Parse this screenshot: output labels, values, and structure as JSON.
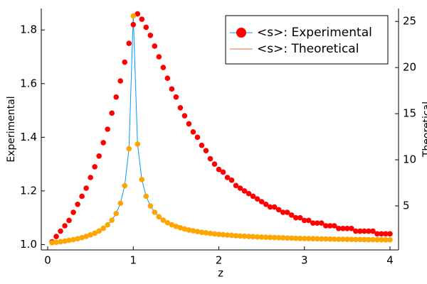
{
  "chart_data": {
    "type": "scatter",
    "x_label": "z",
    "y_label": "Experimental",
    "y2_label": "Theoretical",
    "x": [
      0.05,
      0.1,
      0.15,
      0.2,
      0.25,
      0.3,
      0.35,
      0.4,
      0.45,
      0.5,
      0.55,
      0.6,
      0.65,
      0.7,
      0.75,
      0.8,
      0.85,
      0.9,
      0.95,
      1.0,
      1.05,
      1.1,
      1.15,
      1.2,
      1.25,
      1.3,
      1.35,
      1.4,
      1.45,
      1.5,
      1.55,
      1.6,
      1.65,
      1.7,
      1.75,
      1.8,
      1.85,
      1.9,
      1.95,
      2.0,
      2.05,
      2.1,
      2.15,
      2.2,
      2.25,
      2.3,
      2.35,
      2.4,
      2.45,
      2.5,
      2.55,
      2.6,
      2.65,
      2.7,
      2.75,
      2.8,
      2.85,
      2.9,
      2.95,
      3.0,
      3.05,
      3.1,
      3.15,
      3.2,
      3.25,
      3.3,
      3.35,
      3.4,
      3.45,
      3.5,
      3.55,
      3.6,
      3.65,
      3.7,
      3.75,
      3.8,
      3.85,
      3.9,
      3.95,
      4.0
    ],
    "series": [
      {
        "name": "<s>: Experimental",
        "color": "#ff0000",
        "legend_line_color": "#009af9",
        "values": [
          1.01,
          1.03,
          1.05,
          1.07,
          1.09,
          1.12,
          1.15,
          1.18,
          1.21,
          1.25,
          1.29,
          1.33,
          1.38,
          1.43,
          1.49,
          1.55,
          1.61,
          1.68,
          1.75,
          1.82,
          1.86,
          1.84,
          1.81,
          1.78,
          1.74,
          1.7,
          1.66,
          1.62,
          1.58,
          1.55,
          1.51,
          1.48,
          1.45,
          1.42,
          1.4,
          1.37,
          1.35,
          1.32,
          1.3,
          1.28,
          1.27,
          1.25,
          1.24,
          1.22,
          1.21,
          1.2,
          1.19,
          1.18,
          1.17,
          1.16,
          1.15,
          1.14,
          1.14,
          1.13,
          1.12,
          1.12,
          1.11,
          1.1,
          1.1,
          1.09,
          1.09,
          1.08,
          1.08,
          1.08,
          1.07,
          1.07,
          1.07,
          1.06,
          1.06,
          1.06,
          1.06,
          1.05,
          1.05,
          1.05,
          1.05,
          1.05,
          1.04,
          1.04,
          1.04,
          1.04
        ]
      },
      {
        "name": "<s>: Theoretical",
        "color": "#ffa500",
        "line_color": "#009af9",
        "legend_line_color": "#e26f46",
        "axis": "y2",
        "values": [
          1.01,
          1.06,
          1.12,
          1.19,
          1.27,
          1.35,
          1.45,
          1.56,
          1.7,
          1.86,
          2.04,
          2.28,
          2.57,
          2.95,
          3.46,
          4.18,
          5.29,
          7.19,
          11.2,
          25.6,
          11.7,
          7.86,
          6.05,
          5.0,
          4.31,
          3.82,
          3.46,
          3.18,
          2.96,
          2.78,
          2.63,
          2.5,
          2.39,
          2.3,
          2.22,
          2.14,
          2.08,
          2.02,
          1.97,
          1.92,
          1.88,
          1.84,
          1.81,
          1.77,
          1.74,
          1.72,
          1.69,
          1.67,
          1.64,
          1.62,
          1.6,
          1.59,
          1.57,
          1.55,
          1.54,
          1.52,
          1.51,
          1.49,
          1.48,
          1.47,
          1.46,
          1.45,
          1.44,
          1.43,
          1.42,
          1.41,
          1.4,
          1.39,
          1.39,
          1.38,
          1.37,
          1.36,
          1.36,
          1.35,
          1.34,
          1.34,
          1.33,
          1.33,
          1.32,
          1.32
        ]
      }
    ],
    "xlim": [
      -0.075,
      4.1
    ],
    "xticks": [
      0,
      1,
      2,
      3,
      4
    ],
    "ylim": [
      0.98,
      1.88
    ],
    "yticks": [
      {
        "value": 1,
        "label": "1.0"
      },
      1.2,
      1.4,
      1.6,
      1.8
    ],
    "y2lim": [
      0.23,
      26.4
    ],
    "y2ticks": [
      5,
      10,
      15,
      20,
      25
    ],
    "grid": false,
    "legend": "top-right"
  }
}
